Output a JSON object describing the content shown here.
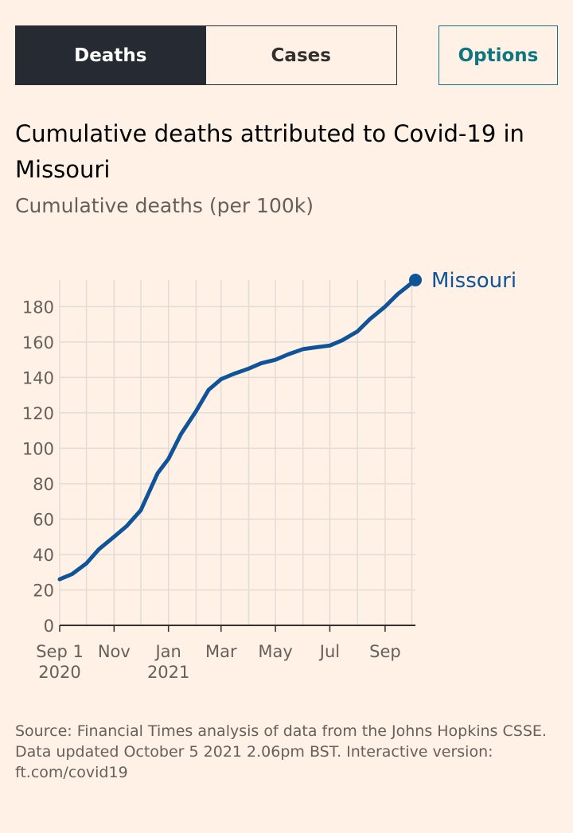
{
  "tabs": [
    {
      "label": "Deaths",
      "active": true
    },
    {
      "label": "Cases",
      "active": false
    }
  ],
  "options_label": "Options",
  "title": "Cumulative deaths attributed to Covid-19 in Missouri",
  "subtitle": "Cumulative deaths (per 100k)",
  "footer": {
    "source": "Source: Financial Times analysis of data from the Johns Hopkins CSSE.",
    "updated": "Data updated October 5 2021 2.06pm BST. Interactive version: ft.com/covid19"
  },
  "colors": {
    "background": "#fff1e5",
    "line": "#0f5499",
    "grid": "#e3dcd5",
    "tab_active": "#262a33",
    "options": "#0d7680"
  },
  "chart_data": {
    "type": "line",
    "title": "Cumulative deaths attributed to Covid-19 in Missouri",
    "ylabel": "Cumulative deaths (per 100k)",
    "xlabel": "",
    "ylim": [
      0,
      195
    ],
    "xlim": [
      "2020-09-01",
      "2021-10-05"
    ],
    "grid": true,
    "legend_placement": "end-of-line label",
    "x_ticks": [
      {
        "date": "2020-09-01",
        "label": "Sep 1",
        "sublabel": "2020"
      },
      {
        "date": "2020-11-01",
        "label": "Nov",
        "sublabel": ""
      },
      {
        "date": "2021-01-01",
        "label": "Jan",
        "sublabel": "2021"
      },
      {
        "date": "2021-03-01",
        "label": "Mar",
        "sublabel": ""
      },
      {
        "date": "2021-05-01",
        "label": "May",
        "sublabel": ""
      },
      {
        "date": "2021-07-01",
        "label": "Jul",
        "sublabel": ""
      },
      {
        "date": "2021-09-01",
        "label": "Sep",
        "sublabel": ""
      }
    ],
    "y_ticks": [
      0,
      20,
      40,
      60,
      80,
      100,
      120,
      140,
      160,
      180
    ],
    "series": [
      {
        "name": "Missouri",
        "color": "#0f5499",
        "points": [
          {
            "x": "2020-09-01",
            "y": 26
          },
          {
            "x": "2020-09-15",
            "y": 29
          },
          {
            "x": "2020-10-01",
            "y": 35
          },
          {
            "x": "2020-10-15",
            "y": 43
          },
          {
            "x": "2020-11-01",
            "y": 50
          },
          {
            "x": "2020-11-15",
            "y": 56
          },
          {
            "x": "2020-12-01",
            "y": 65
          },
          {
            "x": "2020-12-10",
            "y": 75
          },
          {
            "x": "2020-12-20",
            "y": 86
          },
          {
            "x": "2021-01-01",
            "y": 94
          },
          {
            "x": "2021-01-15",
            "y": 108
          },
          {
            "x": "2021-02-01",
            "y": 121
          },
          {
            "x": "2021-02-15",
            "y": 133
          },
          {
            "x": "2021-03-01",
            "y": 139
          },
          {
            "x": "2021-03-15",
            "y": 142
          },
          {
            "x": "2021-04-01",
            "y": 145
          },
          {
            "x": "2021-04-15",
            "y": 148
          },
          {
            "x": "2021-05-01",
            "y": 150
          },
          {
            "x": "2021-05-15",
            "y": 153
          },
          {
            "x": "2021-06-01",
            "y": 156
          },
          {
            "x": "2021-06-15",
            "y": 157
          },
          {
            "x": "2021-07-01",
            "y": 158
          },
          {
            "x": "2021-07-15",
            "y": 161
          },
          {
            "x": "2021-08-01",
            "y": 166
          },
          {
            "x": "2021-08-15",
            "y": 173
          },
          {
            "x": "2021-09-01",
            "y": 180
          },
          {
            "x": "2021-09-15",
            "y": 187
          },
          {
            "x": "2021-10-05",
            "y": 195
          }
        ]
      }
    ]
  }
}
